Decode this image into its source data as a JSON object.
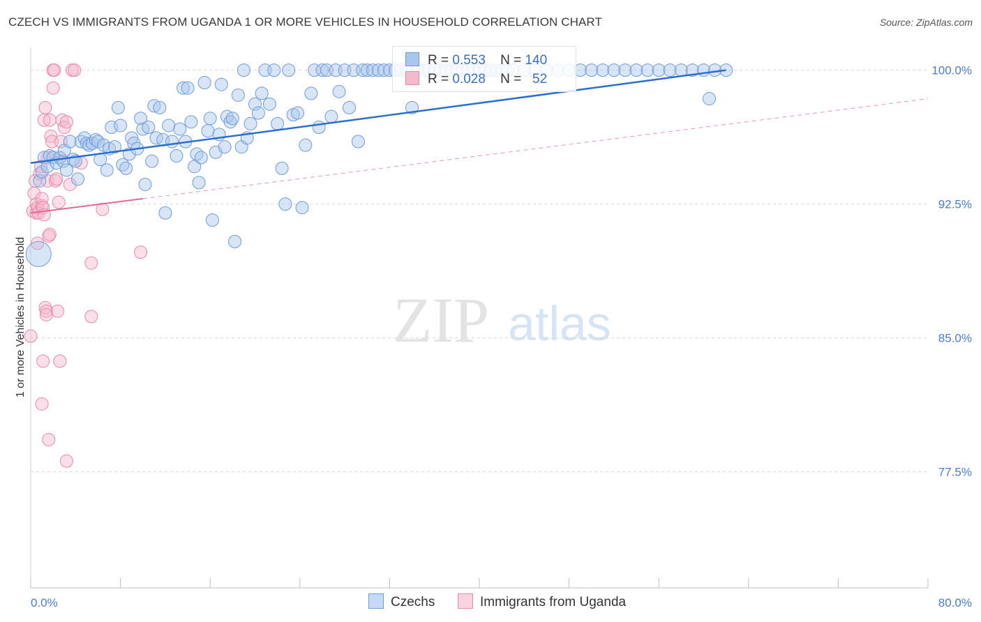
{
  "header": {
    "title": "CZECH VS IMMIGRANTS FROM UGANDA 1 OR MORE VEHICLES IN HOUSEHOLD CORRELATION CHART",
    "source": "Source: ZipAtlas.com"
  },
  "watermark": {
    "zip": "ZIP",
    "atlas": "atlas"
  },
  "colors": {
    "blue_fill": "#a9c6ec",
    "blue_stroke": "#6e9bd8",
    "blue_line": "#2a6fd0",
    "pink_fill": "#f6b9cb",
    "pink_stroke": "#e889a8",
    "pink_line": "#e06a93",
    "tick_label": "#4a7bd0",
    "grid": "#d8d8d8"
  },
  "legend_top": {
    "rows": [
      {
        "r_label": "R =",
        "r_value": "0.553",
        "n_label": "N =",
        "n_value": "140"
      },
      {
        "r_label": "R =",
        "r_value": "0.028",
        "n_label": "N =",
        "n_value": "52"
      }
    ]
  },
  "chart_data": {
    "type": "scatter",
    "title": "CZECH VS IMMIGRANTS FROM UGANDA 1 OR MORE VEHICLES IN HOUSEHOLD CORRELATION CHART",
    "xlabel": "",
    "ylabel": "1 or more Vehicles in Household",
    "xlim": [
      0,
      80
    ],
    "ylim": [
      71,
      101
    ],
    "x_tick_labels": [
      "0.0%",
      "80.0%"
    ],
    "y_ticks": [
      77.5,
      85.0,
      92.5,
      100.0
    ],
    "y_tick_labels": [
      "77.5%",
      "85.0%",
      "92.5%",
      "100.0%"
    ],
    "grid": "horizontal dashed",
    "legend_placement": "bottom-center",
    "series": [
      {
        "name": "Czechs",
        "r": 0.553,
        "n": 140,
        "trend": {
          "x": [
            0,
            62
          ],
          "y": [
            94.8,
            100.0
          ],
          "style": "solid"
        },
        "points": [
          [
            0.7,
            89.7
          ],
          [
            0.8,
            93.8
          ],
          [
            1.0,
            94.3
          ],
          [
            1.2,
            95.1
          ],
          [
            1.5,
            94.6
          ],
          [
            1.7,
            95.2
          ],
          [
            2.0,
            95.1
          ],
          [
            2.3,
            94.8
          ],
          [
            2.6,
            95.1
          ],
          [
            2.9,
            94.9
          ],
          [
            3.0,
            95.5
          ],
          [
            3.2,
            94.4
          ],
          [
            3.5,
            96.0
          ],
          [
            3.8,
            95.0
          ],
          [
            4.0,
            94.9
          ],
          [
            4.2,
            93.9
          ],
          [
            4.5,
            96.0
          ],
          [
            4.8,
            96.2
          ],
          [
            5.0,
            95.9
          ],
          [
            5.2,
            95.8
          ],
          [
            5.5,
            95.9
          ],
          [
            5.8,
            96.1
          ],
          [
            6.0,
            96.0
          ],
          [
            6.2,
            95.0
          ],
          [
            6.5,
            95.8
          ],
          [
            6.8,
            94.4
          ],
          [
            7.0,
            95.6
          ],
          [
            7.2,
            96.8
          ],
          [
            7.5,
            95.7
          ],
          [
            7.8,
            97.9
          ],
          [
            8.0,
            96.9
          ],
          [
            8.2,
            94.7
          ],
          [
            8.5,
            94.5
          ],
          [
            8.8,
            95.3
          ],
          [
            9.0,
            96.2
          ],
          [
            9.2,
            95.9
          ],
          [
            9.5,
            95.6
          ],
          [
            9.8,
            97.3
          ],
          [
            10.0,
            96.7
          ],
          [
            10.2,
            93.6
          ],
          [
            10.5,
            96.8
          ],
          [
            10.8,
            94.9
          ],
          [
            11.0,
            98.0
          ],
          [
            11.2,
            96.2
          ],
          [
            11.5,
            97.9
          ],
          [
            11.8,
            96.1
          ],
          [
            12.0,
            92.0
          ],
          [
            12.3,
            96.9
          ],
          [
            12.6,
            96.0
          ],
          [
            13.0,
            95.2
          ],
          [
            13.3,
            96.7
          ],
          [
            13.6,
            99.0
          ],
          [
            13.8,
            96.0
          ],
          [
            14.0,
            99.0
          ],
          [
            14.3,
            97.1
          ],
          [
            14.6,
            94.6
          ],
          [
            14.8,
            95.3
          ],
          [
            15.0,
            93.7
          ],
          [
            15.2,
            95.1
          ],
          [
            15.5,
            99.3
          ],
          [
            15.8,
            96.6
          ],
          [
            16.0,
            97.3
          ],
          [
            16.2,
            91.6
          ],
          [
            16.5,
            95.4
          ],
          [
            16.8,
            96.4
          ],
          [
            17.0,
            99.2
          ],
          [
            17.3,
            95.7
          ],
          [
            17.5,
            97.4
          ],
          [
            17.8,
            97.1
          ],
          [
            18.0,
            97.3
          ],
          [
            18.2,
            90.4
          ],
          [
            18.5,
            98.6
          ],
          [
            18.8,
            95.7
          ],
          [
            19.0,
            100.0
          ],
          [
            19.3,
            96.2
          ],
          [
            19.6,
            97.0
          ],
          [
            20.0,
            98.1
          ],
          [
            20.3,
            97.6
          ],
          [
            20.6,
            98.7
          ],
          [
            20.9,
            100.0
          ],
          [
            21.3,
            98.1
          ],
          [
            21.7,
            100.0
          ],
          [
            22.0,
            97.0
          ],
          [
            22.4,
            94.5
          ],
          [
            22.7,
            92.5
          ],
          [
            23.0,
            100.0
          ],
          [
            23.4,
            97.5
          ],
          [
            23.8,
            97.6
          ],
          [
            24.2,
            92.3
          ],
          [
            24.5,
            95.8
          ],
          [
            25.0,
            98.7
          ],
          [
            25.3,
            100.0
          ],
          [
            25.7,
            96.8
          ],
          [
            26.0,
            100.0
          ],
          [
            26.4,
            100.0
          ],
          [
            26.8,
            97.4
          ],
          [
            27.2,
            100.0
          ],
          [
            27.5,
            98.8
          ],
          [
            28.0,
            100.0
          ],
          [
            28.4,
            97.9
          ],
          [
            28.8,
            100.0
          ],
          [
            29.2,
            96.0
          ],
          [
            29.6,
            100.0
          ],
          [
            30.0,
            100.0
          ],
          [
            30.5,
            100.0
          ],
          [
            31.0,
            100.0
          ],
          [
            31.5,
            100.0
          ],
          [
            32.0,
            100.0
          ],
          [
            32.5,
            100.0
          ],
          [
            33.0,
            100.0
          ],
          [
            33.5,
            100.0
          ],
          [
            34.0,
            97.9
          ],
          [
            34.5,
            100.0
          ],
          [
            35.0,
            100.0
          ],
          [
            35.5,
            100.0
          ],
          [
            36.0,
            100.0
          ],
          [
            36.5,
            100.0
          ],
          [
            37.0,
            100.0
          ],
          [
            37.5,
            100.0
          ],
          [
            38.0,
            100.0
          ],
          [
            38.5,
            100.0
          ],
          [
            39.0,
            100.0
          ],
          [
            39.5,
            100.0
          ],
          [
            40.0,
            100.0
          ],
          [
            40.5,
            100.0
          ],
          [
            41.0,
            100.0
          ],
          [
            41.5,
            100.0
          ],
          [
            42.0,
            100.0
          ],
          [
            42.5,
            100.0
          ],
          [
            43.0,
            100.0
          ],
          [
            44.0,
            100.0
          ],
          [
            45.0,
            100.0
          ],
          [
            46.0,
            100.0
          ],
          [
            47.0,
            100.0
          ],
          [
            48.0,
            100.0
          ],
          [
            49.0,
            100.0
          ],
          [
            50.0,
            100.0
          ],
          [
            51.0,
            100.0
          ],
          [
            52.0,
            100.0
          ],
          [
            53.0,
            100.0
          ],
          [
            54.0,
            100.0
          ],
          [
            55.0,
            100.0
          ],
          [
            56.0,
            100.0
          ],
          [
            57.0,
            100.0
          ],
          [
            58.0,
            100.0
          ],
          [
            59.0,
            100.0
          ],
          [
            60.0,
            100.0
          ],
          [
            61.0,
            100.0
          ],
          [
            62.0,
            100.0
          ],
          [
            60.5,
            98.4
          ]
        ]
      },
      {
        "name": "Immigrants from Uganda",
        "r": 0.028,
        "n": 52,
        "trend": {
          "x": [
            0,
            10
          ],
          "y": [
            92.0,
            92.8
          ],
          "style": "solid"
        },
        "trend_ext": {
          "x": [
            10,
            80
          ],
          "y": [
            92.8,
            98.4
          ],
          "style": "dashed"
        },
        "points": [
          [
            0.0,
            85.1
          ],
          [
            0.2,
            92.1
          ],
          [
            0.3,
            93.1
          ],
          [
            0.4,
            93.8
          ],
          [
            0.5,
            92.0
          ],
          [
            0.5,
            92.5
          ],
          [
            0.6,
            92.3
          ],
          [
            0.6,
            90.3
          ],
          [
            0.7,
            92.0
          ],
          [
            0.8,
            94.2
          ],
          [
            0.9,
            94.6
          ],
          [
            1.0,
            92.4
          ],
          [
            1.0,
            92.8
          ],
          [
            1.1,
            92.3
          ],
          [
            1.2,
            91.9
          ],
          [
            1.2,
            97.2
          ],
          [
            1.3,
            97.9
          ],
          [
            1.3,
            86.7
          ],
          [
            1.4,
            86.5
          ],
          [
            1.4,
            86.3
          ],
          [
            1.5,
            95.1
          ],
          [
            1.5,
            93.8
          ],
          [
            1.6,
            90.7
          ],
          [
            1.7,
            90.8
          ],
          [
            1.7,
            97.2
          ],
          [
            1.8,
            96.3
          ],
          [
            1.9,
            96.0
          ],
          [
            2.0,
            99.0
          ],
          [
            2.0,
            100.0
          ],
          [
            2.1,
            100.0
          ],
          [
            2.2,
            93.8
          ],
          [
            2.3,
            93.9
          ],
          [
            2.4,
            86.5
          ],
          [
            2.5,
            92.6
          ],
          [
            2.6,
            95.1
          ],
          [
            2.7,
            96.0
          ],
          [
            2.8,
            97.2
          ],
          [
            3.0,
            96.8
          ],
          [
            3.2,
            97.1
          ],
          [
            3.5,
            93.6
          ],
          [
            3.7,
            100.0
          ],
          [
            3.9,
            100.0
          ],
          [
            4.5,
            94.8
          ],
          [
            5.4,
            89.2
          ],
          [
            5.4,
            86.2
          ],
          [
            6.4,
            92.2
          ],
          [
            9.8,
            89.8
          ],
          [
            1.1,
            83.7
          ],
          [
            2.6,
            83.7
          ],
          [
            1.0,
            81.3
          ],
          [
            1.6,
            79.3
          ],
          [
            3.2,
            78.1
          ]
        ]
      }
    ]
  },
  "legend_bottom": {
    "items": [
      "Czechs",
      "Immigrants from Uganda"
    ]
  }
}
